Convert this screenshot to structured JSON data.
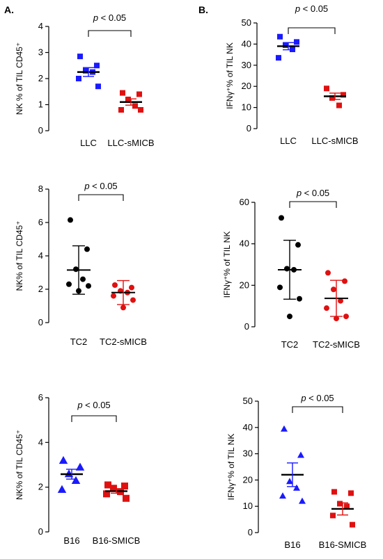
{
  "panel_labels": [
    "A.",
    "B."
  ],
  "chart_data": [
    {
      "type": "scatter",
      "ylabel": "NK % of TIL CD45⁺",
      "categories": [
        "LLC",
        "LLC-sMICB"
      ],
      "ylim": [
        0,
        4
      ],
      "yticks": [
        "0",
        "1",
        "2",
        "3",
        "4"
      ],
      "significance": "p < 0.05",
      "marker": "square",
      "summary": "mean-sem",
      "series": [
        {
          "values": [
            2.85,
            2.5,
            2.3,
            2.25,
            2.0,
            1.7
          ],
          "mean": 2.25,
          "err": 0.17,
          "color": "#1a1aff"
        },
        {
          "values": [
            1.45,
            1.4,
            1.2,
            0.95,
            0.8,
            0.8
          ],
          "mean": 1.1,
          "err": 0.12,
          "color": "#e01010"
        }
      ]
    },
    {
      "type": "scatter",
      "ylabel": "IFNγ⁺% of TIL NK",
      "categories": [
        "LLC",
        "LLC-sMICB"
      ],
      "ylim": [
        0,
        50
      ],
      "yticks": [
        "0",
        "10",
        "20",
        "30",
        "40",
        "50"
      ],
      "significance": "p < 0.05",
      "marker": "square",
      "summary": "mean-sem",
      "series": [
        {
          "values": [
            43.5,
            41.0,
            39.5,
            37.5,
            33.5
          ],
          "mean": 39.0,
          "err": 1.7,
          "color": "#1a1aff"
        },
        {
          "values": [
            19.0,
            16.0,
            14.5,
            11.0
          ],
          "mean": 15.3,
          "err": 1.5,
          "color": "#e01010"
        }
      ]
    },
    {
      "type": "scatter",
      "ylabel": "NK% of TIL CD45⁺",
      "categories": [
        "TC2",
        "TC2-sMICB"
      ],
      "ylim": [
        0,
        8
      ],
      "yticks": [
        "0",
        "2",
        "4",
        "6",
        "8"
      ],
      "significance": "p < 0.05",
      "marker": "circle",
      "summary": "mean-sd",
      "series": [
        {
          "values": [
            6.15,
            4.4,
            3.2,
            2.6,
            2.3,
            2.2,
            1.9
          ],
          "mean": 3.15,
          "err": 1.45,
          "color": "#000000"
        },
        {
          "values": [
            2.25,
            2.1,
            1.9,
            1.8,
            1.6,
            1.35,
            0.9
          ],
          "mean": 1.8,
          "err": 0.72,
          "color": "#e01010"
        }
      ]
    },
    {
      "type": "scatter",
      "ylabel": "IFNγ⁺% of TIL NK",
      "categories": [
        "TC2",
        "TC2-sMICB"
      ],
      "ylim": [
        0,
        60
      ],
      "yticks": [
        "0",
        "20",
        "40",
        "60"
      ],
      "significance": "p < 0.05",
      "marker": "circle",
      "summary": "mean-sd",
      "series": [
        {
          "values": [
            52.5,
            39.5,
            28.0,
            27.5,
            19.0,
            13.5,
            5.0
          ],
          "mean": 27.5,
          "err": 14.2,
          "color": "#000000"
        },
        {
          "values": [
            26.0,
            22.0,
            18.0,
            12.5,
            9.0,
            5.0,
            4.0
          ],
          "mean": 13.7,
          "err": 8.7,
          "color": "#e01010"
        }
      ]
    },
    {
      "type": "scatter",
      "ylabel": "NK% of TIL CD45⁺",
      "categories": [
        "B16",
        "B16-SMICB"
      ],
      "ylim": [
        0,
        6
      ],
      "yticks": [
        "0",
        "2",
        "4",
        "6"
      ],
      "significance": "p < 0.05",
      "marker": "triangle-square",
      "summary": "mean-sem",
      "series": [
        {
          "values": [
            3.2,
            2.9,
            2.6,
            2.3,
            1.9
          ],
          "mean": 2.58,
          "err": 0.22,
          "color": "#1a1aff"
        },
        {
          "values": [
            2.1,
            2.05,
            1.95,
            1.8,
            1.7,
            1.5
          ],
          "mean": 1.82,
          "err": 0.09,
          "color": "#e01010"
        }
      ]
    },
    {
      "type": "scatter",
      "ylabel": "IFNγ⁺% of TIL NK",
      "categories": [
        "B16",
        "B16-SMICB"
      ],
      "ylim": [
        0,
        50
      ],
      "yticks": [
        "0",
        "10",
        "20",
        "30",
        "40",
        "50"
      ],
      "significance": "p < 0.05",
      "marker": "triangle-square",
      "summary": "mean-sem",
      "series": [
        {
          "values": [
            39.5,
            29.5,
            19.5,
            17.0,
            14.0,
            12.0
          ],
          "mean": 22.0,
          "err": 4.5,
          "color": "#1a1aff"
        },
        {
          "values": [
            15.5,
            15.0,
            11.0,
            10.0,
            6.5,
            3.0
          ],
          "mean": 9.0,
          "err": 2.3,
          "color": "#e01010"
        }
      ]
    }
  ]
}
